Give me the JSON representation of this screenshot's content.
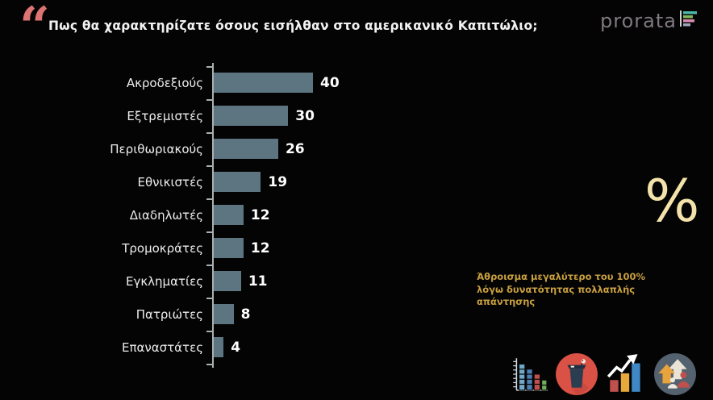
{
  "header": {
    "quote_icon": "“",
    "title": "Πως θα χαρακτηρίζατε όσους εισήλθαν στο αμερικανικό Καπιτώλιο;",
    "logo_text": "prorata"
  },
  "chart_data": {
    "type": "bar",
    "orientation": "horizontal",
    "title": "Πως θα χαρακτηρίζατε όσους εισήλθαν στο αμερικανικό Καπιτώλιο;",
    "categories": [
      "Ακροδεξιούς",
      "Εξτρεμιστές",
      "Περιθωριακούς",
      "Εθνικιστές",
      "Διαδηλωτές",
      "Τρομοκράτες",
      "Εγκληματίες",
      "Πατριώτες",
      "Επαναστάτες"
    ],
    "values": [
      40,
      30,
      26,
      19,
      12,
      12,
      11,
      8,
      4
    ],
    "unit": "%",
    "xlim": [
      0,
      40
    ],
    "grid": false,
    "legend": null,
    "bar_color": "#5c7580",
    "axis_color": "#a9b0b0"
  },
  "annotation": {
    "text": "Άθροισμα μεγαλύτερο του 100% λόγω δυνατότητας πολλαπλής απάντησης",
    "color": "#c9a03f"
  },
  "percent_symbol": "%",
  "colors": {
    "background": "#040404",
    "title_text": "#f2f2f2",
    "quote_mark": "#dd7373",
    "value_text": "#ffffff"
  },
  "footer_icons": [
    {
      "name": "bar-chart-icon"
    },
    {
      "name": "podium-icon"
    },
    {
      "name": "growth-chart-icon"
    },
    {
      "name": "audience-icon"
    }
  ]
}
